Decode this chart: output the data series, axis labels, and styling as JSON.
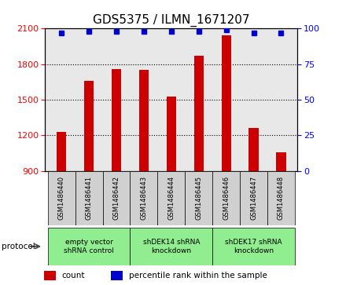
{
  "title": "GDS5375 / ILMN_1671207",
  "samples": [
    "GSM1486440",
    "GSM1486441",
    "GSM1486442",
    "GSM1486443",
    "GSM1486444",
    "GSM1486445",
    "GSM1486446",
    "GSM1486447",
    "GSM1486448"
  ],
  "counts": [
    1230,
    1660,
    1760,
    1750,
    1530,
    1870,
    2040,
    1260,
    1060
  ],
  "percentiles": [
    97,
    98,
    98,
    98,
    98,
    98,
    99,
    97,
    97
  ],
  "ylim_left": [
    900,
    2100
  ],
  "ylim_right": [
    0,
    100
  ],
  "yticks_left": [
    900,
    1200,
    1500,
    1800,
    2100
  ],
  "yticks_right": [
    0,
    25,
    50,
    75,
    100
  ],
  "groups": [
    {
      "label": "empty vector\nshRNA control",
      "start": 0,
      "end": 3,
      "color": "#90EE90"
    },
    {
      "label": "shDEK14 shRNA\nknockdown",
      "start": 3,
      "end": 6,
      "color": "#90EE90"
    },
    {
      "label": "shDEK17 shRNA\nknockdown",
      "start": 6,
      "end": 9,
      "color": "#90EE90"
    }
  ],
  "bar_color": "#cc0000",
  "dot_color": "#0000cc",
  "bar_width": 0.35,
  "bg_color_plot": "#e8e8e8",
  "bg_color_fig": "#ffffff",
  "protocol_label": "protocol",
  "legend_count_label": "count",
  "legend_pct_label": "percentile rank within the sample",
  "title_fontsize": 11,
  "tick_fontsize": 8,
  "label_fontsize": 8,
  "ybaseline": 900
}
